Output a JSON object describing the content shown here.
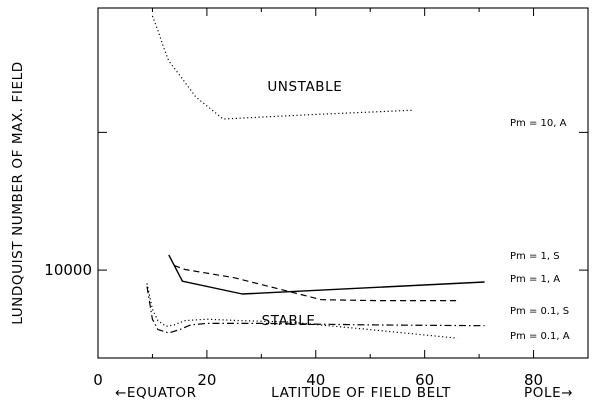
{
  "chart_data": {
    "type": "line",
    "title": "",
    "xlabel": "LATITUDE OF FIELD BELT",
    "xlabel_left": "←EQUATOR",
    "xlabel_right": "POLE→",
    "ylabel": "LUNDQUIST NUMBER OF MAX. FIELD",
    "xlim": [
      0,
      90
    ],
    "ylim": [
      2300,
      800000
    ],
    "yscale": "log",
    "x_ticks": [
      0,
      20,
      40,
      60,
      80
    ],
    "y_ticks_labeled": [
      10000
    ],
    "y_ticks_minor": [
      100000
    ],
    "grid": false,
    "annotations": [
      {
        "text": "UNSTABLE",
        "x": 38,
        "y": 200000
      },
      {
        "text": "STABLE",
        "x": 35,
        "y": 4000
      }
    ],
    "series": [
      {
        "name": "Pm = 10, A",
        "style": "dotted",
        "x": [
          10,
          11,
          12,
          13,
          15,
          18,
          23,
          40,
          58
        ],
        "y": [
          700000,
          550000,
          420000,
          330000,
          260000,
          180000,
          125000,
          135000,
          145000
        ]
      },
      {
        "name": "Pm = 1, S",
        "style": "solid",
        "x": [
          13,
          15.5,
          26.5,
          71
        ],
        "y": [
          12900,
          8300,
          6700,
          8200
        ]
      },
      {
        "name": "Pm = 1, A",
        "style": "dashed",
        "x": [
          14,
          16,
          25,
          35,
          41,
          51,
          66
        ],
        "y": [
          10800,
          10100,
          8800,
          7000,
          6100,
          6000,
          6000
        ]
      },
      {
        "name": "Pm = 0.1, S",
        "style": "dotted",
        "x": [
          9,
          10,
          11,
          12.5,
          14,
          16,
          20,
          26,
          35,
          50,
          66
        ],
        "y": [
          8000,
          5200,
          4300,
          3900,
          4000,
          4300,
          4400,
          4300,
          4200,
          3700,
          3200
        ]
      },
      {
        "name": "Pm = 0.1, A",
        "style": "dashdot",
        "x": [
          9,
          10,
          11,
          13,
          15,
          17,
          20,
          30,
          50,
          71
        ],
        "y": [
          7600,
          4400,
          3700,
          3500,
          3700,
          4000,
          4100,
          4100,
          4000,
          3950
        ]
      }
    ]
  }
}
